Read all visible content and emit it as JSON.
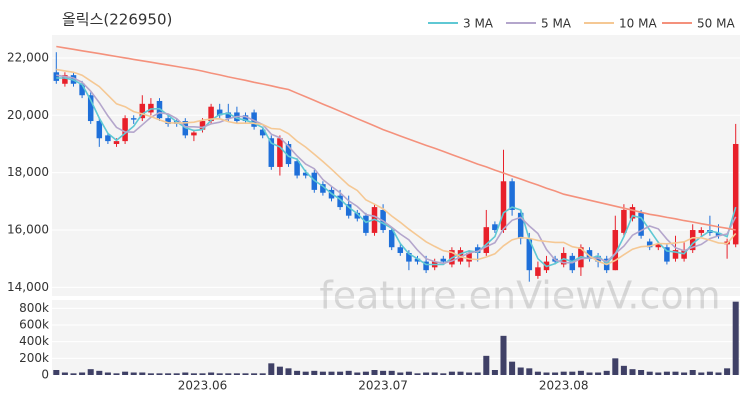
{
  "chart_data": [
    {
      "type": "candlestick",
      "title": "올릭스(226950)",
      "watermark": "feature.enViewV.com",
      "legend": "top-right",
      "grid": true,
      "up_color": "#e8202a",
      "down_color": "#1e6fd9",
      "open": [
        21500,
        21100,
        21400,
        21100,
        20700,
        19800,
        19300,
        19000,
        19100,
        19900,
        19900,
        20100,
        20500,
        19900,
        19800,
        19800,
        19300,
        19500,
        19800,
        20200,
        20100,
        20100,
        20000,
        20100,
        19500,
        19200,
        18200,
        19000,
        18400,
        18000,
        18000,
        17600,
        17400,
        17200,
        16900,
        16600,
        16500,
        15900,
        16700,
        16000,
        15400,
        15200,
        15000,
        14900,
        14700,
        15000,
        14800,
        14900,
        14900,
        15400,
        15200,
        16200,
        16000,
        17700,
        16600,
        15700,
        14400,
        14600,
        15000,
        14800,
        15100,
        14700,
        15300,
        15100,
        15000,
        14600,
        15900,
        16400,
        16600,
        15600,
        15400,
        15400,
        15000,
        15000,
        15300,
        15900,
        16000,
        15900,
        15500,
        15500
      ],
      "high": [
        22200,
        21500,
        21500,
        21200,
        20800,
        19900,
        19400,
        19200,
        20000,
        20000,
        20700,
        20600,
        20600,
        20000,
        19900,
        19900,
        19500,
        19900,
        20400,
        20400,
        20400,
        20300,
        20100,
        20200,
        19600,
        19300,
        19300,
        19100,
        18500,
        18100,
        18100,
        17700,
        17500,
        17400,
        17200,
        16700,
        16600,
        16900,
        16900,
        16100,
        15500,
        15300,
        15100,
        15100,
        15000,
        15100,
        15400,
        15400,
        15300,
        15500,
        16700,
        16300,
        18800,
        17800,
        16700,
        15900,
        14900,
        15100,
        15100,
        15400,
        15200,
        15500,
        15400,
        15200,
        15100,
        16500,
        16900,
        16900,
        16700,
        15700,
        15600,
        15500,
        15800,
        15600,
        16200,
        16100,
        16500,
        16200,
        15700,
        19700
      ],
      "low": [
        21100,
        21000,
        21000,
        20600,
        19700,
        18900,
        19000,
        18900,
        19000,
        19700,
        19800,
        20000,
        19800,
        19600,
        19600,
        19200,
        19100,
        19400,
        19700,
        19900,
        19800,
        19700,
        19700,
        19500,
        19200,
        18100,
        17900,
        18200,
        17800,
        17800,
        17300,
        17200,
        17000,
        16700,
        16400,
        16300,
        15800,
        15800,
        15900,
        15300,
        15100,
        14600,
        14800,
        14500,
        14600,
        14800,
        14700,
        14800,
        14700,
        14900,
        15100,
        15900,
        15900,
        16500,
        15500,
        14200,
        14300,
        14500,
        14800,
        14700,
        14500,
        14400,
        14900,
        14700,
        14500,
        14600,
        15800,
        16300,
        15700,
        15300,
        15300,
        14800,
        14900,
        14900,
        15200,
        15800,
        15800,
        15700,
        15000,
        15400
      ],
      "close": [
        21200,
        21400,
        21100,
        20700,
        19800,
        19200,
        19100,
        19100,
        19900,
        19850,
        20400,
        20400,
        19900,
        19700,
        19700,
        19300,
        19400,
        19800,
        20300,
        20000,
        19900,
        19800,
        19800,
        19600,
        19300,
        18200,
        19200,
        18300,
        17900,
        17900,
        17400,
        17300,
        17100,
        16800,
        16500,
        16400,
        15900,
        16800,
        16000,
        15400,
        15200,
        14900,
        14900,
        14600,
        14900,
        14900,
        15300,
        15300,
        15200,
        15200,
        16100,
        16000,
        17700,
        16700,
        15700,
        14600,
        14700,
        14900,
        14900,
        15200,
        14600,
        15400,
        15000,
        14900,
        14600,
        16000,
        16700,
        16800,
        15800,
        15400,
        15500,
        14900,
        15300,
        15300,
        16000,
        16000,
        15900,
        15800,
        15600,
        19000
      ],
      "series": [
        {
          "name": "3 MA",
          "color": "#5fc8d4",
          "values": [
            21300,
            21300,
            21230,
            21070,
            20530,
            19900,
            19370,
            19130,
            19370,
            19620,
            20050,
            20220,
            20230,
            20000,
            19770,
            19570,
            19470,
            19500,
            19830,
            20030,
            20070,
            19900,
            19830,
            19730,
            19570,
            19030,
            18900,
            18570,
            18470,
            18030,
            17730,
            17530,
            17270,
            17070,
            16800,
            16570,
            16270,
            16370,
            16230,
            16070,
            15530,
            15170,
            15000,
            14800,
            14800,
            14800,
            15030,
            15170,
            15270,
            15230,
            15500,
            15770,
            16600,
            16800,
            16700,
            15670,
            15000,
            14730,
            14830,
            15000,
            14900,
            15070,
            15000,
            15100,
            14830,
            15170,
            15770,
            16500,
            16430,
            16000,
            15570,
            15270,
            15230,
            15170,
            15530,
            15770,
            15970,
            15900,
            15770,
            16800
          ]
        },
        {
          "name": "5 MA",
          "color": "#b4a6cc",
          "values": [
            21400,
            21350,
            21300,
            21150,
            20840,
            20440,
            19980,
            19580,
            19420,
            19410,
            19670,
            19930,
            20090,
            20050,
            19880,
            19600,
            19600,
            19580,
            19700,
            19760,
            19880,
            19960,
            19960,
            19820,
            19680,
            19340,
            19220,
            18920,
            18580,
            18300,
            18140,
            17760,
            17520,
            17300,
            17020,
            16820,
            16540,
            16480,
            16320,
            16100,
            15860,
            15660,
            15300,
            15000,
            14900,
            14840,
            14920,
            15060,
            15200,
            15260,
            15420,
            15560,
            16040,
            16340,
            16440,
            16140,
            15880,
            15320,
            14960,
            14860,
            14860,
            15000,
            15020,
            15020,
            14900,
            15180,
            15440,
            15820,
            15980,
            16140,
            16040,
            15680,
            15380,
            15280,
            15400,
            15500,
            15700,
            15800,
            15860,
            16460
          ]
        },
        {
          "name": "10 MA",
          "color": "#f5c894",
          "values": [
            21600,
            21550,
            21500,
            21400,
            21200,
            21000,
            20700,
            20400,
            20300,
            20130,
            20050,
            19960,
            19840,
            19740,
            19730,
            19740,
            19760,
            19830,
            19870,
            19880,
            19780,
            19720,
            19730,
            19720,
            19680,
            19540,
            19520,
            19360,
            19100,
            18890,
            18640,
            18390,
            18120,
            17840,
            17560,
            17380,
            17050,
            16900,
            16740,
            16490,
            16270,
            16030,
            15810,
            15590,
            15430,
            15280,
            15220,
            15070,
            14990,
            14970,
            15060,
            15170,
            15450,
            15660,
            15740,
            15710,
            15640,
            15600,
            15570,
            15570,
            15420,
            15360,
            15090,
            14910,
            14800,
            14940,
            15140,
            15330,
            15420,
            15440,
            15530,
            15520,
            15550,
            15590,
            15730,
            15730,
            15650,
            15550,
            15530,
            15880
          ]
        },
        {
          "name": "50 MA",
          "color": "#f4917c",
          "values": [
            22400,
            22350,
            22300,
            22250,
            22200,
            22150,
            22100,
            22050,
            22000,
            21950,
            21900,
            21850,
            21800,
            21750,
            21700,
            21650,
            21600,
            21540,
            21470,
            21410,
            21340,
            21280,
            21220,
            21150,
            21090,
            21030,
            20960,
            20900,
            20770,
            20650,
            20520,
            20390,
            20270,
            20140,
            20010,
            19880,
            19760,
            19630,
            19500,
            19390,
            19280,
            19170,
            19060,
            18950,
            18850,
            18740,
            18630,
            18520,
            18410,
            18300,
            18200,
            18090,
            17990,
            17880,
            17780,
            17670,
            17570,
            17460,
            17360,
            17250,
            17180,
            17110,
            17040,
            16970,
            16900,
            16830,
            16760,
            16690,
            16620,
            16550,
            16500,
            16440,
            16390,
            16330,
            16280,
            16220,
            16170,
            16110,
            16060,
            16000
          ]
        }
      ],
      "ylim": [
        13700,
        22800
      ],
      "yticks": [
        {
          "value": 14000,
          "label": "14,000"
        },
        {
          "value": 16000,
          "label": "16,000"
        },
        {
          "value": 18000,
          "label": "18,000"
        },
        {
          "value": 20000,
          "label": "20,000"
        },
        {
          "value": 22000,
          "label": "22,000"
        }
      ]
    },
    {
      "type": "bar",
      "color": "#3f4066",
      "grid": true,
      "categories": [
        null,
        null,
        null,
        null,
        null,
        null,
        null,
        null,
        null,
        null,
        null,
        null,
        null,
        null,
        null,
        null,
        null,
        "2023.06",
        null,
        null,
        null,
        null,
        null,
        null,
        null,
        null,
        null,
        null,
        null,
        null,
        null,
        null,
        null,
        null,
        null,
        null,
        null,
        null,
        "2023.07",
        null,
        null,
        null,
        null,
        null,
        null,
        null,
        null,
        null,
        null,
        null,
        null,
        null,
        null,
        null,
        null,
        null,
        null,
        null,
        null,
        "2023.08",
        null,
        null,
        null,
        null,
        null,
        null,
        null,
        null,
        null,
        null,
        null,
        null,
        null,
        null,
        null,
        null,
        null,
        null,
        null,
        null
      ],
      "values": [
        60000,
        30000,
        20000,
        30000,
        70000,
        50000,
        30000,
        20000,
        40000,
        30000,
        30000,
        20000,
        20000,
        20000,
        20000,
        30000,
        20000,
        20000,
        30000,
        20000,
        20000,
        20000,
        20000,
        20000,
        20000,
        140000,
        100000,
        80000,
        50000,
        40000,
        50000,
        40000,
        40000,
        40000,
        50000,
        30000,
        40000,
        60000,
        50000,
        50000,
        30000,
        40000,
        20000,
        30000,
        30000,
        20000,
        40000,
        40000,
        30000,
        30000,
        230000,
        60000,
        470000,
        160000,
        90000,
        80000,
        40000,
        30000,
        30000,
        40000,
        40000,
        50000,
        30000,
        30000,
        50000,
        200000,
        110000,
        70000,
        60000,
        40000,
        30000,
        40000,
        40000,
        30000,
        60000,
        30000,
        40000,
        30000,
        80000,
        880000
      ],
      "ylim": [
        0,
        900000
      ],
      "yticks": [
        0,
        {
          "value": 200000,
          "label": "200k"
        },
        {
          "value": 400000,
          "label": "400k"
        },
        {
          "value": 600000,
          "label": "600k"
        },
        {
          "value": 800000,
          "label": "800k"
        }
      ]
    }
  ]
}
